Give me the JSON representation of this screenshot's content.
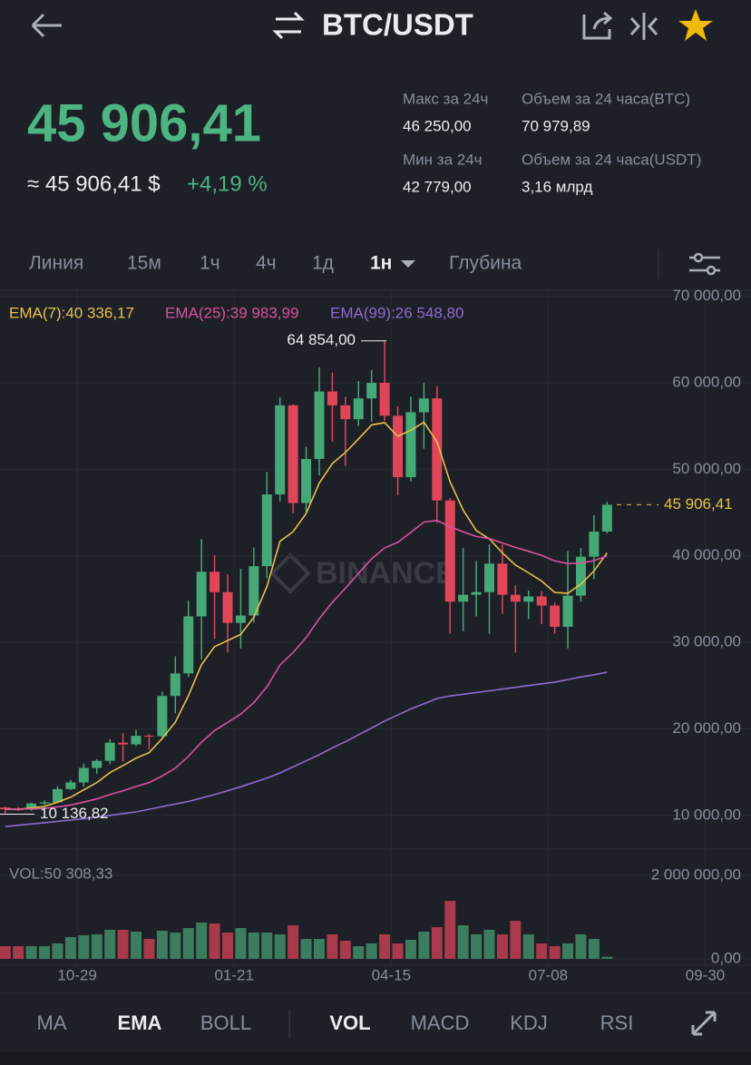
{
  "header": {
    "title": "BTC/USDT"
  },
  "ticker": {
    "price": "45 906,41",
    "approx": "≈ 45 906,41 $",
    "change": "+4,19 %",
    "stats": [
      {
        "label": "Макс за 24ч",
        "value": "46 250,00"
      },
      {
        "label": "Мин за 24ч",
        "value": "42 779,00"
      },
      {
        "label": "Объем за 24 часа(BTC)",
        "value": "70 979,89"
      },
      {
        "label": "Объем за 24 часа(USDT)",
        "value": "3,16 млрд"
      }
    ]
  },
  "intervals": {
    "items": [
      "Линия",
      "15м",
      "1ч",
      "4ч",
      "1д",
      "1н",
      "Глубина"
    ],
    "active": 5
  },
  "indicator_tabs": {
    "items": [
      "MA",
      "EMA",
      "BOLL",
      "VOL",
      "MACD",
      "KDJ",
      "RSI"
    ],
    "active": [
      1,
      3
    ]
  },
  "watermark": "BINANCE",
  "chart_data": [
    {
      "type": "candlestick",
      "up_color": "#45a877",
      "down_color": "#e0465a",
      "x": [
        0,
        1,
        2,
        3,
        4,
        5,
        6,
        7,
        8,
        9,
        10,
        11,
        12,
        13,
        14,
        15,
        16,
        17,
        18,
        19,
        20,
        21,
        22,
        23,
        24,
        25,
        26,
        27,
        28,
        29,
        30,
        31,
        32,
        33,
        34,
        35,
        36,
        37,
        38,
        39,
        40,
        41,
        42,
        43,
        44,
        45,
        46
      ],
      "open": [
        10900,
        10700,
        10666,
        11370,
        11500,
        13030,
        13800,
        15480,
        16300,
        18400,
        18200,
        19200,
        19150,
        23800,
        26400,
        33000,
        38150,
        35800,
        32250,
        33100,
        38800,
        47100,
        57400,
        46100,
        51200,
        59000,
        57400,
        55800,
        58200,
        60000,
        56200,
        49100,
        56600,
        58200,
        46400,
        34700,
        35500,
        35800,
        39100,
        35500,
        34700,
        35300,
        34250,
        31800,
        35400,
        39900,
        42800
      ],
      "high": [
        11000,
        10950,
        11490,
        11720,
        13350,
        14100,
        15960,
        16490,
        18800,
        19500,
        19900,
        19400,
        24300,
        28400,
        34800,
        41950,
        40100,
        37850,
        38500,
        40950,
        49700,
        58350,
        57500,
        52600,
        61800,
        61200,
        58400,
        60200,
        61500,
        64854,
        57300,
        58400,
        60000,
        59600,
        46700,
        40900,
        39400,
        41300,
        41300,
        36600,
        36000,
        35900,
        34600,
        40550,
        40900,
        44700,
        46250
      ],
      "low": [
        10136.82,
        10500,
        10530,
        11180,
        11400,
        12900,
        13300,
        14800,
        15900,
        16200,
        18000,
        17600,
        19000,
        21800,
        26000,
        28000,
        30400,
        28850,
        29300,
        32300,
        37400,
        46300,
        44900,
        45000,
        49300,
        53200,
        50400,
        55000,
        55500,
        55600,
        47000,
        48600,
        52400,
        43800,
        31000,
        31300,
        33000,
        31000,
        33300,
        28800,
        32700,
        32100,
        31000,
        29300,
        34700,
        37300,
        42600
      ],
      "close": [
        10700,
        10666,
        11370,
        11500,
        13030,
        13800,
        15480,
        16300,
        18400,
        18200,
        19200,
        19150,
        23800,
        26400,
        33000,
        38150,
        35800,
        32250,
        33100,
        38800,
        47100,
        57400,
        46100,
        51200,
        59000,
        57400,
        55800,
        58200,
        60000,
        56200,
        49100,
        56600,
        58200,
        46400,
        34700,
        35500,
        35800,
        39100,
        35500,
        34700,
        35300,
        34250,
        31800,
        35400,
        39900,
        42800,
        45906.41
      ],
      "series": [
        {
          "name": "EMA(7):40 336,17",
          "color": "#e8c04a",
          "values": [
            10700,
            10692,
            10861,
            11021,
            11523,
            12092,
            12939,
            13779,
            14934,
            15751,
            16613,
            17247,
            18885,
            20764,
            23823,
            27405,
            29504,
            30191,
            30918,
            32889,
            36442,
            41682,
            42787,
            44890,
            48418,
            50664,
            51948,
            53511,
            55133,
            55400,
            53825,
            54519,
            55439,
            53179,
            48559,
            45294,
            42921,
            41966,
            40350,
            38938,
            38028,
            37084,
            35763,
            35672,
            36729,
            38247,
            40336.17
          ]
        },
        {
          "name": "EMA(25):39 983,99",
          "color": "#d9509f",
          "values": [
            10700,
            10697,
            10749,
            10807,
            10978,
            11195,
            11525,
            11893,
            12394,
            12841,
            13331,
            13779,
            14551,
            15463,
            16813,
            18456,
            19792,
            20751,
            21702,
            23019,
            24873,
            27378,
            28820,
            30543,
            32734,
            34633,
            36263,
            37952,
            39650,
            40924,
            41554,
            42713,
            43905,
            44097,
            43373,
            42767,
            42231,
            41990,
            41490,
            40967,
            40531,
            40047,
            39412,
            39103,
            39164,
            39444,
            39983.99
          ]
        },
        {
          "name": "EMA(99):26 548,80",
          "color": "#8e6bd0",
          "values": [
            8700,
            8850,
            9000,
            9150,
            9300,
            9450,
            9600,
            9800,
            10000,
            10200,
            10400,
            10700,
            11000,
            11300,
            11600,
            12000,
            12400,
            12850,
            13300,
            13800,
            14300,
            14900,
            15600,
            16300,
            17000,
            17800,
            18500,
            19300,
            20100,
            20900,
            21600,
            22300,
            22900,
            23500,
            23800,
            24000,
            24200,
            24400,
            24600,
            24800,
            25000,
            25200,
            25400,
            25700,
            26000,
            26250,
            26548.8
          ]
        }
      ],
      "high_marker": {
        "value": 64854,
        "label": "64 854,00"
      },
      "low_marker": {
        "value": 10136.82,
        "label": "10 136,82"
      },
      "last_price": {
        "value": 45906.41,
        "label": "45 906,41"
      },
      "xlim": [
        -0.4,
        57
      ],
      "xticks": [
        {
          "value": 5.5,
          "label": "10-29"
        },
        {
          "value": 17.5,
          "label": "01-21"
        },
        {
          "value": 29.5,
          "label": "04-15"
        },
        {
          "value": 41.5,
          "label": "07-08"
        },
        {
          "value": 53.5,
          "label": "09-30"
        }
      ],
      "ylim": [
        6200,
        70700
      ],
      "yticks": [
        {
          "value": 70000,
          "label": "70 000,00"
        },
        {
          "value": 60000,
          "label": "60 000,00"
        },
        {
          "value": 50000,
          "label": "50 000,00"
        },
        {
          "value": 40000,
          "label": "40 000,00"
        },
        {
          "value": 30000,
          "label": "30 000,00"
        },
        {
          "value": 20000,
          "label": "20 000,00"
        },
        {
          "value": 10000,
          "label": "10 000,00"
        }
      ],
      "grid": true
    },
    {
      "type": "bar",
      "title": "VOL:50 308,33",
      "up_color": "#3b7d5e",
      "down_color": "#a83a4b",
      "values": [
        304000,
        304000,
        304000,
        304000,
        370000,
        522000,
        565000,
        587000,
        696000,
        696000,
        652000,
        478000,
        674000,
        630000,
        739000,
        870000,
        848000,
        630000,
        739000,
        630000,
        630000,
        587000,
        804000,
        478000,
        478000,
        587000,
        435000,
        304000,
        370000,
        587000,
        370000,
        457000,
        652000,
        761000,
        1391000,
        804000,
        587000,
        696000,
        587000,
        913000,
        587000,
        370000,
        304000,
        370000,
        587000,
        478000,
        50308.33
      ],
      "ylim": [
        0,
        2000000
      ],
      "yticks": [
        {
          "value": 2000000,
          "label": "2 000 000,00"
        },
        {
          "value": 0,
          "label": "0,00"
        }
      ]
    }
  ]
}
